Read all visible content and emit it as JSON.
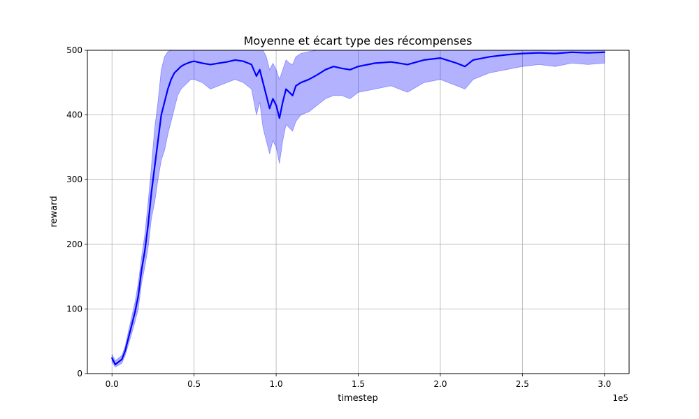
{
  "chart_data": {
    "type": "line",
    "title": "Moyenne et écart type des récompenses",
    "xlabel": "timestep",
    "ylabel": "reward",
    "x_offset_label": "1e5",
    "x_scale": 100000,
    "xlim": [
      -15000,
      315000
    ],
    "ylim": [
      0,
      500
    ],
    "grid": true,
    "x_ticks": [
      {
        "value": 0,
        "label": "0.0"
      },
      {
        "value": 50000,
        "label": "0.5"
      },
      {
        "value": 100000,
        "label": "1.0"
      },
      {
        "value": 150000,
        "label": "1.5"
      },
      {
        "value": 200000,
        "label": "2.0"
      },
      {
        "value": 250000,
        "label": "2.5"
      },
      {
        "value": 300000,
        "label": "3.0"
      }
    ],
    "y_ticks": [
      {
        "value": 0,
        "label": "0"
      },
      {
        "value": 100,
        "label": "100"
      },
      {
        "value": 200,
        "label": "200"
      },
      {
        "value": 300,
        "label": "300"
      },
      {
        "value": 400,
        "label": "400"
      },
      {
        "value": 500,
        "label": "500"
      }
    ],
    "series": [
      {
        "color": "#0000ff",
        "band_color": "#0000ff",
        "band_opacity": 0.3,
        "x": [
          0,
          2000,
          4000,
          6000,
          8000,
          10000,
          12000,
          14000,
          16000,
          18000,
          20000,
          22000,
          24000,
          26000,
          28000,
          30000,
          32000,
          34000,
          36000,
          38000,
          40000,
          42000,
          44000,
          46000,
          48000,
          50000,
          55000,
          60000,
          65000,
          70000,
          75000,
          80000,
          85000,
          88000,
          90000,
          92000,
          94000,
          96000,
          98000,
          100000,
          102000,
          104000,
          106000,
          108000,
          110000,
          112000,
          115000,
          120000,
          125000,
          130000,
          135000,
          140000,
          145000,
          150000,
          160000,
          170000,
          180000,
          190000,
          200000,
          210000,
          215000,
          220000,
          230000,
          240000,
          250000,
          260000,
          270000,
          280000,
          290000,
          300000
        ],
        "mean": [
          24,
          14,
          18,
          22,
          35,
          55,
          75,
          95,
          120,
          160,
          190,
          230,
          280,
          320,
          360,
          400,
          420,
          440,
          455,
          465,
          470,
          475,
          478,
          480,
          482,
          483,
          480,
          478,
          480,
          482,
          485,
          483,
          478,
          460,
          470,
          450,
          430,
          410,
          425,
          415,
          395,
          420,
          440,
          435,
          430,
          445,
          450,
          455,
          462,
          470,
          475,
          472,
          470,
          475,
          480,
          482,
          478,
          485,
          488,
          480,
          475,
          485,
          490,
          493,
          495,
          496,
          495,
          497,
          496,
          497
        ],
        "upper": [
          30,
          20,
          24,
          28,
          42,
          65,
          88,
          110,
          140,
          180,
          215,
          265,
          320,
          380,
          420,
          470,
          490,
          498,
          500,
          500,
          500,
          500,
          500,
          500,
          500,
          500,
          500,
          500,
          500,
          500,
          500,
          500,
          500,
          500,
          500,
          500,
          490,
          470,
          480,
          470,
          455,
          470,
          485,
          480,
          478,
          490,
          495,
          498,
          500,
          500,
          500,
          500,
          500,
          500,
          500,
          500,
          500,
          500,
          500,
          500,
          500,
          500,
          500,
          500,
          500,
          500,
          500,
          500,
          500,
          500
        ],
        "lower": [
          18,
          10,
          13,
          16,
          28,
          45,
          62,
          80,
          100,
          140,
          165,
          195,
          240,
          265,
          300,
          330,
          345,
          370,
          390,
          410,
          430,
          440,
          445,
          450,
          455,
          455,
          450,
          440,
          445,
          450,
          455,
          450,
          440,
          400,
          420,
          380,
          360,
          340,
          360,
          350,
          325,
          360,
          385,
          380,
          375,
          390,
          400,
          405,
          415,
          425,
          430,
          430,
          425,
          435,
          440,
          445,
          435,
          450,
          455,
          445,
          440,
          455,
          465,
          470,
          475,
          478,
          475,
          480,
          478,
          480
        ]
      }
    ]
  }
}
